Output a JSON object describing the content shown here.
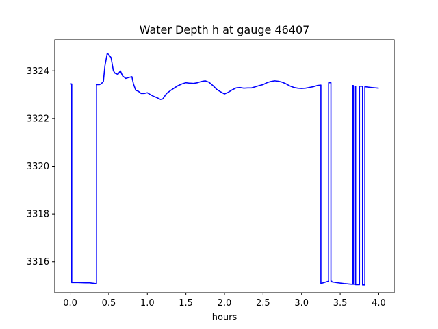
{
  "chart_data": {
    "type": "line",
    "title": "Water Depth h at gauge 46407",
    "xlabel": "hours",
    "ylabel": "",
    "xlim": [
      -0.2,
      4.2
    ],
    "ylim": [
      3314.7,
      3325.3
    ],
    "xticks": [
      0.0,
      0.5,
      1.0,
      1.5,
      2.0,
      2.5,
      3.0,
      3.5,
      4.0
    ],
    "xtick_labels": [
      "0.0",
      "0.5",
      "1.0",
      "1.5",
      "2.0",
      "2.5",
      "3.0",
      "3.5",
      "4.0"
    ],
    "yticks": [
      3316,
      3318,
      3320,
      3322,
      3324
    ],
    "ytick_labels": [
      "3316",
      "3318",
      "3320",
      "3322",
      "3324"
    ],
    "grid": false,
    "series": [
      {
        "color": "#0000ff",
        "x": [
          0.0,
          0.02,
          0.02,
          0.1,
          0.2,
          0.25,
          0.33,
          0.34,
          0.34,
          0.38,
          0.4,
          0.43,
          0.45,
          0.48,
          0.5,
          0.53,
          0.56,
          0.58,
          0.62,
          0.65,
          0.68,
          0.72,
          0.76,
          0.8,
          0.82,
          0.85,
          0.88,
          0.92,
          0.96,
          1.0,
          1.04,
          1.08,
          1.12,
          1.17,
          1.2,
          1.25,
          1.3,
          1.35,
          1.4,
          1.45,
          1.5,
          1.55,
          1.6,
          1.65,
          1.7,
          1.75,
          1.8,
          1.85,
          1.9,
          1.95,
          2.0,
          2.05,
          2.1,
          2.15,
          2.2,
          2.25,
          2.3,
          2.35,
          2.4,
          2.45,
          2.5,
          2.55,
          2.6,
          2.65,
          2.7,
          2.75,
          2.8,
          2.85,
          2.9,
          2.95,
          3.0,
          3.05,
          3.1,
          3.15,
          3.2,
          3.25,
          3.25,
          3.35,
          3.35,
          3.38,
          3.38,
          3.39,
          3.39,
          3.45,
          3.55,
          3.65,
          3.66,
          3.66,
          3.67,
          3.67,
          3.69,
          3.69,
          3.7,
          3.7,
          3.75,
          3.75,
          3.79,
          3.79,
          3.82,
          3.82,
          3.9,
          4.0
        ],
        "y": [
          3323.45,
          3323.45,
          3315.12,
          3315.12,
          3315.11,
          3315.11,
          3315.08,
          3315.08,
          3323.42,
          3323.42,
          3323.45,
          3323.55,
          3324.2,
          3324.72,
          3324.68,
          3324.55,
          3324.0,
          3323.9,
          3323.85,
          3324.0,
          3323.78,
          3323.68,
          3323.72,
          3323.75,
          3323.45,
          3323.18,
          3323.15,
          3323.05,
          3323.05,
          3323.08,
          3323.0,
          3322.93,
          3322.88,
          3322.8,
          3322.82,
          3323.05,
          3323.17,
          3323.28,
          3323.38,
          3323.45,
          3323.5,
          3323.48,
          3323.47,
          3323.5,
          3323.55,
          3323.58,
          3323.52,
          3323.38,
          3323.22,
          3323.12,
          3323.03,
          3323.1,
          3323.2,
          3323.28,
          3323.3,
          3323.27,
          3323.28,
          3323.28,
          3323.33,
          3323.38,
          3323.42,
          3323.5,
          3323.55,
          3323.58,
          3323.56,
          3323.52,
          3323.45,
          3323.36,
          3323.3,
          3323.27,
          3323.26,
          3323.27,
          3323.3,
          3323.33,
          3323.38,
          3323.4,
          3315.08,
          3315.18,
          3323.5,
          3323.5,
          3315.18,
          3315.18,
          3315.15,
          3315.12,
          3315.08,
          3315.05,
          3315.05,
          3323.38,
          3323.38,
          3315.05,
          3315.05,
          3323.35,
          3323.35,
          3315.03,
          3315.03,
          3323.35,
          3323.35,
          3315.02,
          3315.02,
          3323.33,
          3323.3,
          3323.27
        ]
      }
    ]
  }
}
